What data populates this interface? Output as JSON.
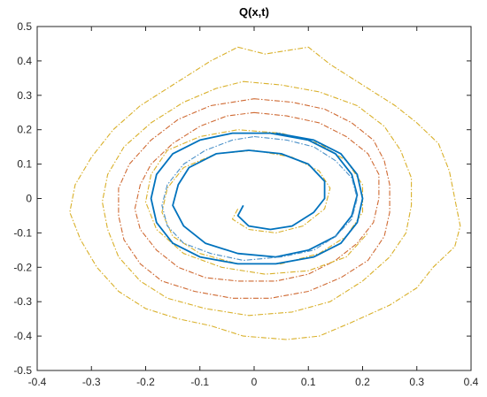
{
  "chart_data": {
    "type": "line",
    "title": "Q(x,t)",
    "xlabel": "",
    "ylabel": "",
    "xlim": [
      -0.4,
      0.4
    ],
    "ylim": [
      -0.5,
      0.5
    ],
    "x_ticks": [
      -0.4,
      -0.3,
      -0.2,
      -0.1,
      0,
      0.1,
      0.2,
      0.3,
      0.4
    ],
    "y_ticks": [
      -0.5,
      -0.4,
      -0.3,
      -0.2,
      -0.1,
      0,
      0.1,
      0.2,
      0.3,
      0.4,
      0.5
    ],
    "x_tick_labels": [
      "-0.4",
      "-0.3",
      "-0.2",
      "-0.1",
      "0",
      "0.1",
      "0.2",
      "0.3",
      "0.4"
    ],
    "y_tick_labels": [
      "-0.5",
      "-0.4",
      "-0.3",
      "-0.2",
      "-0.1",
      "0",
      "0.1",
      "0.2",
      "0.3",
      "0.4",
      "0.5"
    ],
    "grid": false,
    "legend": "none",
    "series": [
      {
        "color": "#d9b02a",
        "style": "dash-dot",
        "points": [
          [
            -0.03,
            0.44
          ],
          [
            0.02,
            0.42
          ],
          [
            0.06,
            0.43
          ],
          [
            0.1,
            0.44
          ],
          [
            0.14,
            0.39
          ],
          [
            0.2,
            0.33
          ],
          [
            0.26,
            0.27
          ],
          [
            0.3,
            0.22
          ],
          [
            0.34,
            0.16
          ],
          [
            0.36,
            0.08
          ],
          [
            0.37,
            0.0
          ],
          [
            0.38,
            -0.08
          ],
          [
            0.37,
            -0.14
          ],
          [
            0.33,
            -0.2
          ],
          [
            0.3,
            -0.26
          ],
          [
            0.25,
            -0.31
          ],
          [
            0.18,
            -0.36
          ],
          [
            0.12,
            -0.4
          ],
          [
            0.06,
            -0.41
          ],
          [
            -0.02,
            -0.4
          ],
          [
            -0.08,
            -0.37
          ],
          [
            -0.14,
            -0.35
          ],
          [
            -0.2,
            -0.32
          ],
          [
            -0.25,
            -0.27
          ],
          [
            -0.29,
            -0.2
          ],
          [
            -0.32,
            -0.12
          ],
          [
            -0.34,
            -0.04
          ],
          [
            -0.33,
            0.04
          ],
          [
            -0.3,
            0.12
          ],
          [
            -0.26,
            0.2
          ],
          [
            -0.21,
            0.27
          ],
          [
            -0.15,
            0.33
          ],
          [
            -0.08,
            0.4
          ],
          [
            -0.03,
            0.44
          ]
        ]
      },
      {
        "color": "#d9b02a",
        "style": "dash-dot",
        "points": [
          [
            -0.02,
            0.34
          ],
          [
            0.05,
            0.33
          ],
          [
            0.12,
            0.31
          ],
          [
            0.19,
            0.27
          ],
          [
            0.24,
            0.21
          ],
          [
            0.27,
            0.14
          ],
          [
            0.29,
            0.06
          ],
          [
            0.29,
            -0.02
          ],
          [
            0.28,
            -0.1
          ],
          [
            0.25,
            -0.17
          ],
          [
            0.2,
            -0.24
          ],
          [
            0.14,
            -0.3
          ],
          [
            0.07,
            -0.33
          ],
          [
            -0.01,
            -0.34
          ],
          [
            -0.09,
            -0.32
          ],
          [
            -0.16,
            -0.29
          ],
          [
            -0.21,
            -0.24
          ],
          [
            -0.25,
            -0.17
          ],
          [
            -0.27,
            -0.09
          ],
          [
            -0.28,
            -0.01
          ],
          [
            -0.27,
            0.07
          ],
          [
            -0.24,
            0.15
          ],
          [
            -0.19,
            0.22
          ],
          [
            -0.13,
            0.28
          ],
          [
            -0.07,
            0.32
          ],
          [
            -0.02,
            0.34
          ]
        ]
      },
      {
        "color": "#cf6a33",
        "style": "dash-dot",
        "points": [
          [
            0.0,
            0.29
          ],
          [
            0.07,
            0.28
          ],
          [
            0.13,
            0.26
          ],
          [
            0.18,
            0.22
          ],
          [
            0.22,
            0.17
          ],
          [
            0.24,
            0.11
          ],
          [
            0.25,
            0.04
          ],
          [
            0.25,
            -0.04
          ],
          [
            0.24,
            -0.11
          ],
          [
            0.21,
            -0.18
          ],
          [
            0.16,
            -0.23
          ],
          [
            0.1,
            -0.27
          ],
          [
            0.03,
            -0.29
          ],
          [
            -0.04,
            -0.29
          ],
          [
            -0.11,
            -0.27
          ],
          [
            -0.17,
            -0.24
          ],
          [
            -0.21,
            -0.19
          ],
          [
            -0.24,
            -0.12
          ],
          [
            -0.25,
            -0.05
          ],
          [
            -0.25,
            0.03
          ],
          [
            -0.23,
            0.1
          ],
          [
            -0.19,
            0.17
          ],
          [
            -0.14,
            0.23
          ],
          [
            -0.08,
            0.27
          ],
          [
            0.0,
            0.29
          ]
        ]
      },
      {
        "color": "#cf6a33",
        "style": "dash-dot",
        "points": [
          [
            0.0,
            0.25
          ],
          [
            0.06,
            0.24
          ],
          [
            0.12,
            0.22
          ],
          [
            0.17,
            0.18
          ],
          [
            0.21,
            0.13
          ],
          [
            0.23,
            0.07
          ],
          [
            0.23,
            0.0
          ],
          [
            0.22,
            -0.07
          ],
          [
            0.19,
            -0.13
          ],
          [
            0.15,
            -0.18
          ],
          [
            0.1,
            -0.22
          ],
          [
            0.04,
            -0.24
          ],
          [
            -0.03,
            -0.24
          ],
          [
            -0.09,
            -0.23
          ],
          [
            -0.14,
            -0.2
          ],
          [
            -0.18,
            -0.15
          ],
          [
            -0.21,
            -0.09
          ],
          [
            -0.22,
            -0.03
          ],
          [
            -0.21,
            0.04
          ],
          [
            -0.19,
            0.1
          ],
          [
            -0.15,
            0.16
          ],
          [
            -0.1,
            0.21
          ],
          [
            -0.05,
            0.24
          ],
          [
            0.0,
            0.25
          ]
        ]
      },
      {
        "color": "#d9b02a",
        "style": "dash-dot",
        "points": [
          [
            -0.03,
            -0.03
          ],
          [
            -0.04,
            -0.06
          ],
          [
            -0.01,
            -0.09
          ],
          [
            0.04,
            -0.1
          ],
          [
            0.09,
            -0.08
          ],
          [
            0.13,
            -0.03
          ],
          [
            0.14,
            0.03
          ],
          [
            0.12,
            0.08
          ],
          [
            0.07,
            0.12
          ],
          [
            0.0,
            0.14
          ],
          [
            -0.07,
            0.13
          ],
          [
            -0.13,
            0.09
          ],
          [
            -0.16,
            0.03
          ],
          [
            -0.17,
            -0.04
          ],
          [
            -0.15,
            -0.11
          ],
          [
            -0.1,
            -0.16
          ],
          [
            -0.03,
            -0.19
          ],
          [
            0.05,
            -0.19
          ],
          [
            0.12,
            -0.16
          ],
          [
            0.17,
            -0.11
          ],
          [
            0.2,
            -0.04
          ],
          [
            0.2,
            0.04
          ],
          [
            0.17,
            0.11
          ],
          [
            0.12,
            0.16
          ],
          [
            0.05,
            0.19
          ],
          [
            -0.03,
            0.2
          ],
          [
            -0.1,
            0.18
          ],
          [
            -0.16,
            0.14
          ],
          [
            -0.19,
            0.07
          ],
          [
            -0.2,
            -0.01
          ],
          [
            -0.18,
            -0.09
          ],
          [
            -0.13,
            -0.16
          ],
          [
            -0.06,
            -0.2
          ],
          [
            0.02,
            -0.22
          ],
          [
            0.1,
            -0.21
          ],
          [
            0.17,
            -0.17
          ],
          [
            0.21,
            -0.1
          ]
        ]
      },
      {
        "color": "#0072bd",
        "style": "solid",
        "points": [
          [
            -0.02,
            -0.02
          ],
          [
            -0.03,
            -0.05
          ],
          [
            -0.01,
            -0.08
          ],
          [
            0.03,
            -0.09
          ],
          [
            0.07,
            -0.08
          ],
          [
            0.11,
            -0.04
          ],
          [
            0.13,
            0.0
          ],
          [
            0.13,
            0.05
          ],
          [
            0.1,
            0.1
          ],
          [
            0.05,
            0.13
          ],
          [
            -0.01,
            0.14
          ],
          [
            -0.07,
            0.13
          ],
          [
            -0.12,
            0.09
          ],
          [
            -0.14,
            0.04
          ],
          [
            -0.15,
            -0.02
          ],
          [
            -0.13,
            -0.08
          ],
          [
            -0.09,
            -0.13
          ],
          [
            -0.03,
            -0.16
          ],
          [
            0.04,
            -0.17
          ],
          [
            0.1,
            -0.15
          ],
          [
            0.15,
            -0.11
          ],
          [
            0.18,
            -0.05
          ],
          [
            0.19,
            0.01
          ],
          [
            0.18,
            0.07
          ],
          [
            0.15,
            0.13
          ],
          [
            0.1,
            0.17
          ],
          [
            0.03,
            0.19
          ],
          [
            -0.04,
            0.19
          ],
          [
            -0.1,
            0.17
          ],
          [
            -0.15,
            0.13
          ],
          [
            -0.18,
            0.07
          ],
          [
            -0.19,
            0.0
          ],
          [
            -0.18,
            -0.07
          ],
          [
            -0.15,
            -0.13
          ],
          [
            -0.1,
            -0.17
          ],
          [
            -0.03,
            -0.19
          ],
          [
            0.04,
            -0.19
          ],
          [
            0.11,
            -0.17
          ],
          [
            0.16,
            -0.13
          ],
          [
            0.19,
            -0.07
          ],
          [
            0.2,
            0.0
          ],
          [
            0.19,
            0.07
          ],
          [
            0.16,
            0.13
          ],
          [
            0.11,
            0.17
          ],
          [
            0.04,
            0.19
          ]
        ]
      },
      {
        "color": "#4a90c8",
        "style": "dash-dot",
        "points": [
          [
            0.0,
            0.18
          ],
          [
            0.06,
            0.17
          ],
          [
            0.11,
            0.15
          ],
          [
            0.15,
            0.11
          ],
          [
            0.18,
            0.06
          ],
          [
            0.19,
            0.0
          ],
          [
            0.18,
            -0.06
          ],
          [
            0.15,
            -0.11
          ],
          [
            0.11,
            -0.15
          ],
          [
            0.05,
            -0.17
          ],
          [
            -0.02,
            -0.18
          ],
          [
            -0.08,
            -0.16
          ],
          [
            -0.13,
            -0.13
          ],
          [
            -0.16,
            -0.08
          ],
          [
            -0.17,
            -0.02
          ],
          [
            -0.16,
            0.04
          ],
          [
            -0.13,
            0.1
          ],
          [
            -0.09,
            0.14
          ],
          [
            -0.04,
            0.17
          ],
          [
            0.0,
            0.18
          ]
        ]
      }
    ]
  }
}
